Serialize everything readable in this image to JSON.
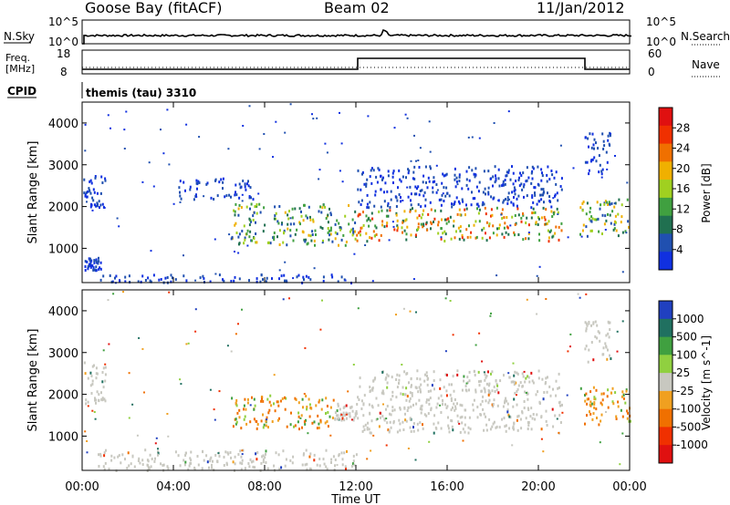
{
  "header": {
    "station": "Goose Bay (fitACF)",
    "beam": "Beam 02",
    "date": "11/Jan/2012"
  },
  "noise_panel": {
    "left_label": "N.Sky",
    "right_label": "N.Search",
    "left_ticks": [
      "10^5",
      "10^0"
    ],
    "right_ticks": [
      "10^5",
      "10^0"
    ]
  },
  "freq_panel": {
    "left_label_lines": [
      "Freq.",
      "[MHz]"
    ],
    "right_label": "Nave",
    "left_ticks": [
      "18",
      "8"
    ],
    "right_ticks": [
      "60",
      "0"
    ]
  },
  "cpid": {
    "label": "CPID",
    "text": "themis (tau) 3310"
  },
  "time_axis": {
    "title": "Time UT",
    "ticks": [
      "00:00",
      "04:00",
      "08:00",
      "12:00",
      "16:00",
      "20:00",
      "00:00"
    ]
  },
  "colors": {
    "power_scale": [
      "#1030e0",
      "#2050b0",
      "#207050",
      "#40a040",
      "#a0d020",
      "#f0b000",
      "#f07000",
      "#f03000",
      "#e01010"
    ],
    "velocity_scale": [
      "#2040c0",
      "#207060",
      "#40a040",
      "#90d040",
      "#c8c8c0",
      "#f0a020",
      "#f07000",
      "#f03000",
      "#e01010"
    ]
  },
  "chart_data": [
    {
      "type": "heatmap",
      "panel": "power",
      "ylabel": "Slant Range [km]",
      "ylim": [
        180,
        4500
      ],
      "yticks": [
        "1000",
        "2000",
        "3000",
        "4000"
      ],
      "colorbar_label": "Power [dB]",
      "colorbar_ticks": [
        "4",
        "8",
        "12",
        "16",
        "20",
        "24",
        "28"
      ],
      "colorbar_range": [
        0,
        32
      ],
      "regions": [
        {
          "t0": 0.05,
          "t1": 1.0,
          "r0": 2000,
          "r1": 2800,
          "level": "low"
        },
        {
          "t0": 0.1,
          "t1": 0.8,
          "r0": 500,
          "r1": 800,
          "level": "low"
        },
        {
          "t0": 0.5,
          "t1": 12.0,
          "r0": 200,
          "r1": 400,
          "level": "low"
        },
        {
          "t0": 4.2,
          "t1": 7.5,
          "r0": 2200,
          "r1": 2700,
          "level": "low"
        },
        {
          "t0": 6.5,
          "t1": 12.0,
          "r0": 1100,
          "r1": 2100,
          "level": "mixed"
        },
        {
          "t0": 12.0,
          "t1": 21.0,
          "r0": 1200,
          "r1": 2000,
          "level": "high"
        },
        {
          "t0": 12.0,
          "t1": 21.0,
          "r0": 2000,
          "r1": 3000,
          "level": "low"
        },
        {
          "t0": 21.8,
          "t1": 24.0,
          "r0": 1300,
          "r1": 2200,
          "level": "mixed"
        },
        {
          "t0": 22.0,
          "t1": 23.2,
          "r0": 2800,
          "r1": 3800,
          "level": "low"
        }
      ]
    },
    {
      "type": "heatmap",
      "panel": "velocity",
      "ylabel": "Slant Range [km]",
      "ylim": [
        180,
        4500
      ],
      "yticks": [
        "1000",
        "2000",
        "3000",
        "4000"
      ],
      "colorbar_label": "Velocity [m s^-1]",
      "colorbar_ticks": [
        "1000",
        "500",
        "100",
        "25",
        "-25",
        "-100",
        "-500",
        "-1000"
      ],
      "regions": [
        {
          "t0": 0.05,
          "t1": 1.0,
          "r0": 1800,
          "r1": 2800,
          "level": "ground"
        },
        {
          "t0": 0.5,
          "t1": 12.0,
          "r0": 200,
          "r1": 700,
          "level": "ground"
        },
        {
          "t0": 6.5,
          "t1": 11.0,
          "r0": 1200,
          "r1": 2000,
          "level": "away"
        },
        {
          "t0": 11.0,
          "t1": 12.0,
          "r0": 1400,
          "r1": 1800,
          "level": "ground"
        },
        {
          "t0": 12.0,
          "t1": 21.0,
          "r0": 1100,
          "r1": 2200,
          "level": "ground"
        },
        {
          "t0": 12.0,
          "t1": 21.0,
          "r0": 2200,
          "r1": 2600,
          "level": "ground"
        },
        {
          "t0": 21.8,
          "t1": 24.0,
          "r0": 1300,
          "r1": 2200,
          "level": "away"
        },
        {
          "t0": 22.0,
          "t1": 23.2,
          "r0": 2800,
          "r1": 3800,
          "level": "ground"
        }
      ]
    }
  ]
}
